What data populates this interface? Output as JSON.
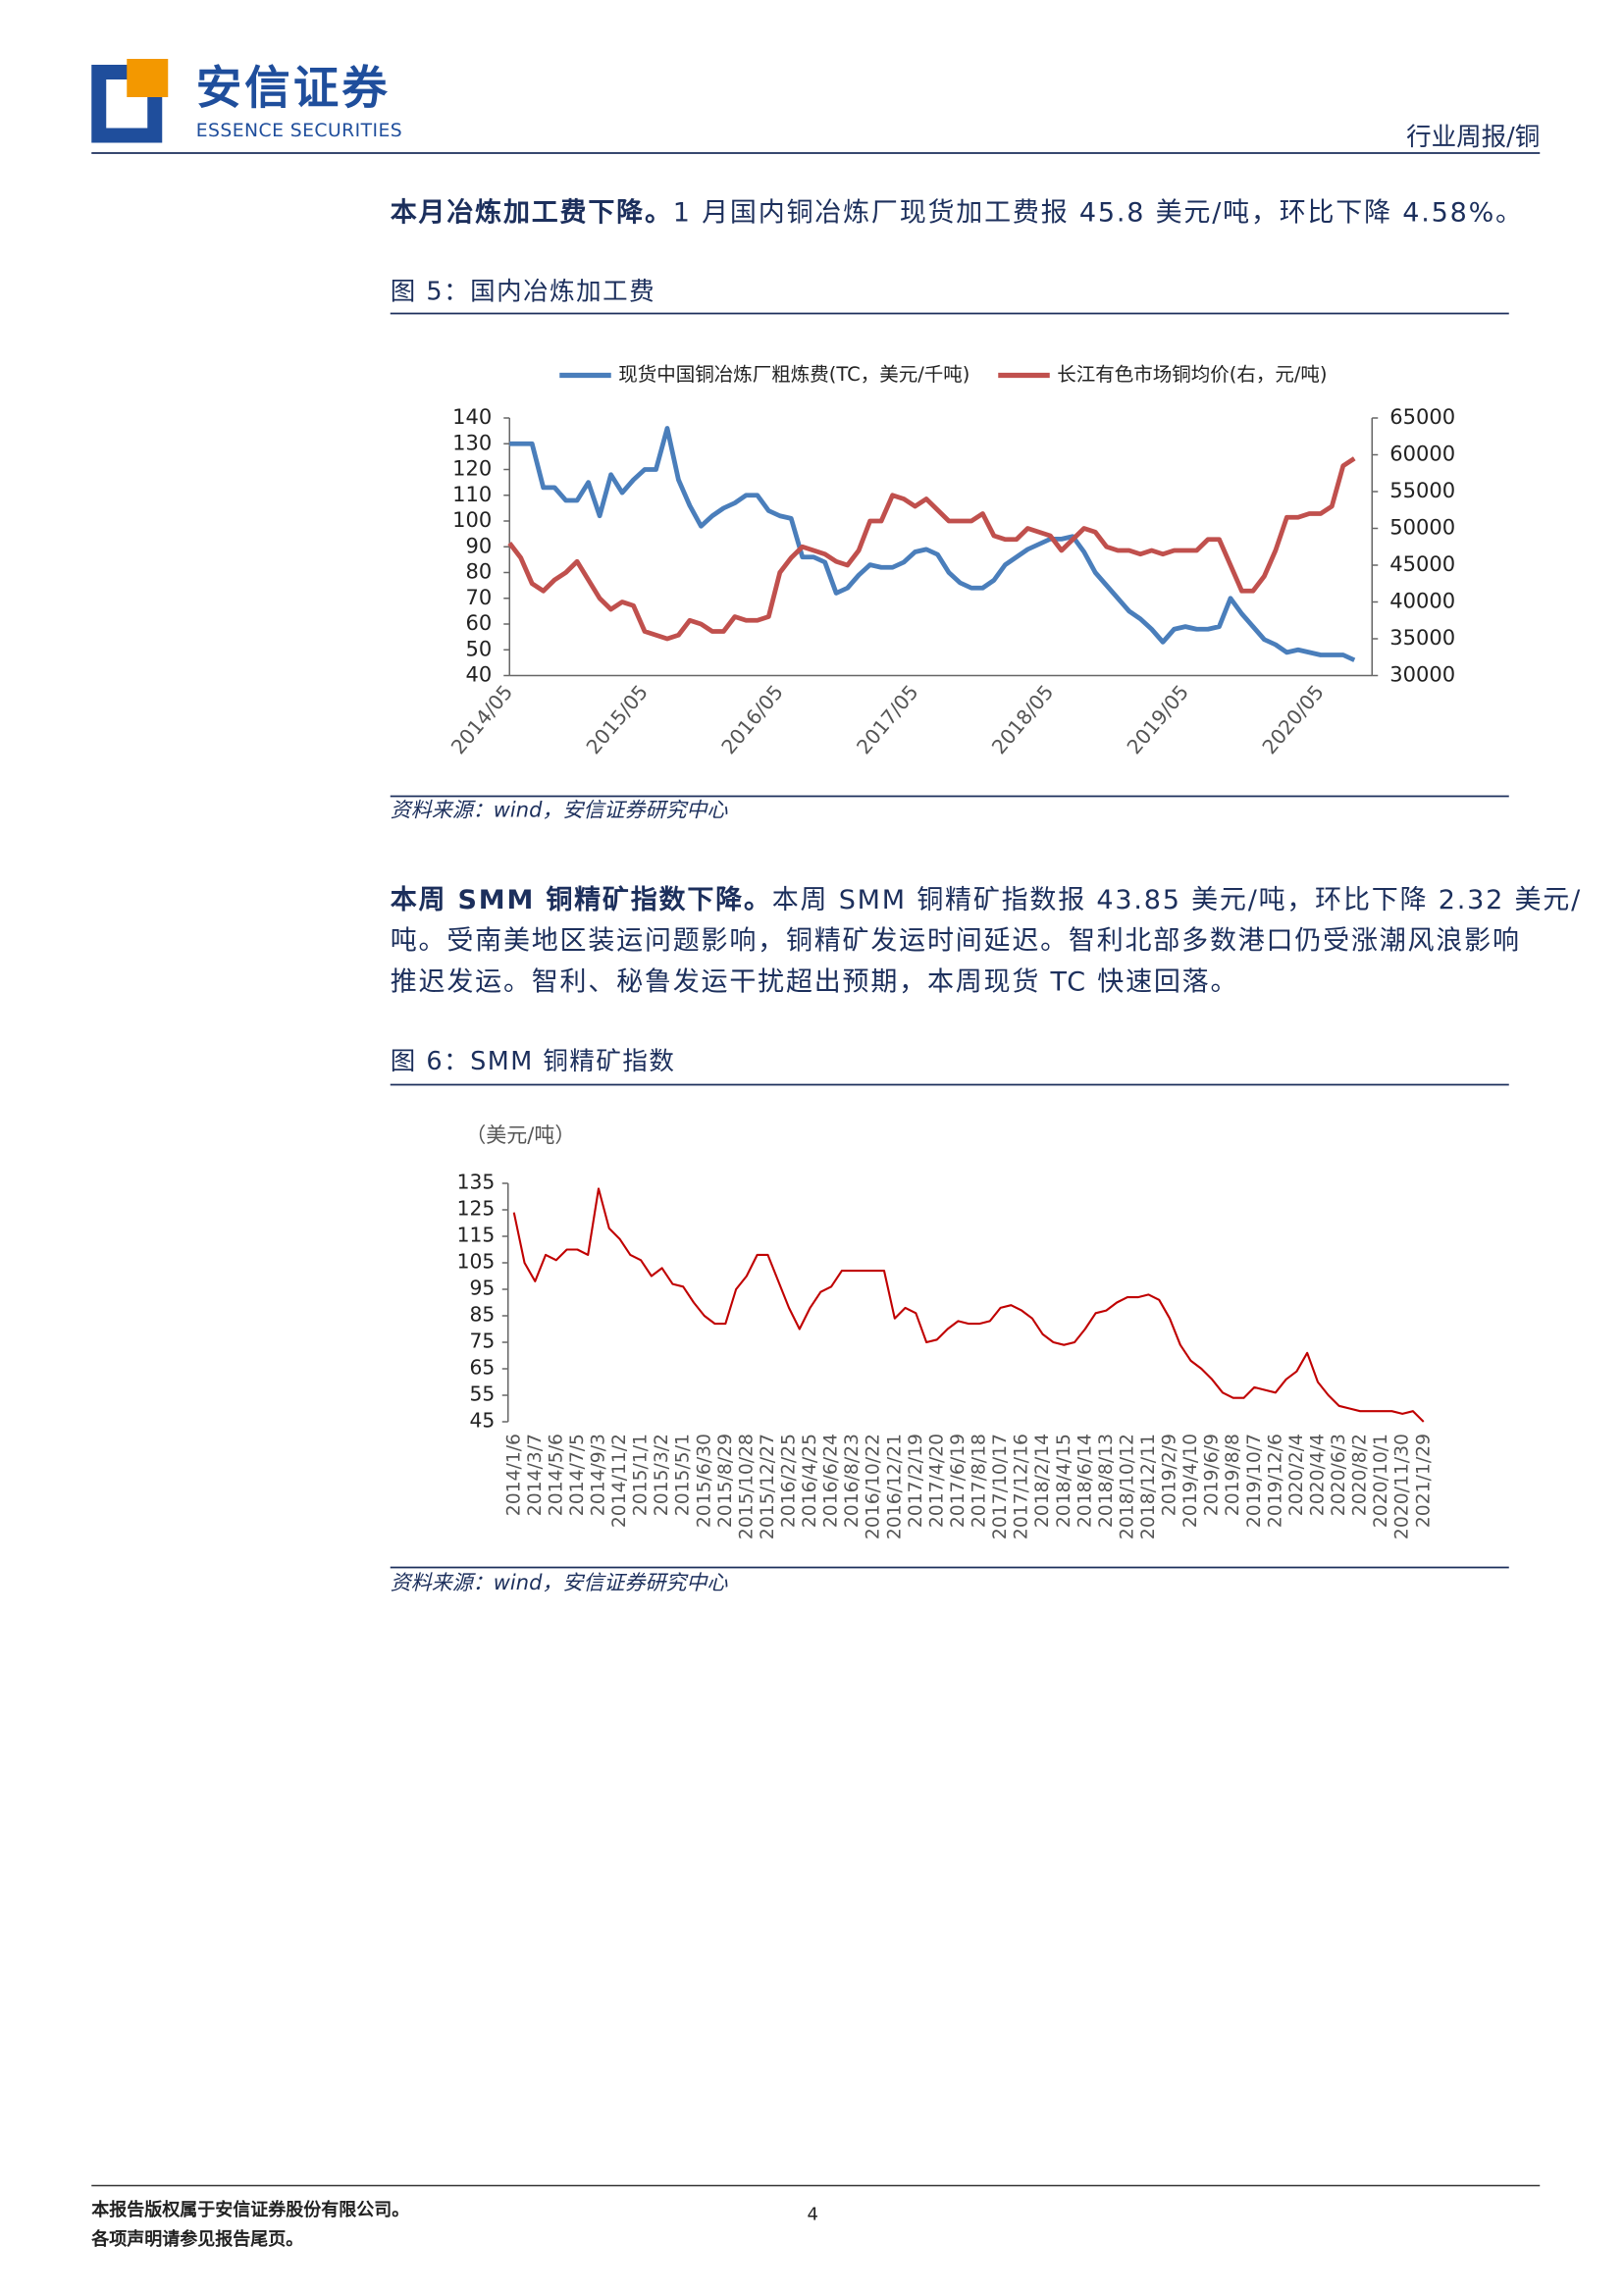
{
  "header": {
    "logo_cn": "安信证券",
    "logo_en": "ESSENCE SECURITIES",
    "section": "行业周报/铜"
  },
  "paragraphs": [
    {
      "lead": "本月冶炼加工费下降。",
      "lines": [
        "1 月国内铜冶炼厂现货加工费报 45.8 美元/吨，环比下降 4.58%。"
      ]
    },
    {
      "lead": "本周 SMM 铜精矿指数下降。",
      "lines": [
        "本周 SMM 铜精矿指数报 43.85 美元/吨，环比下降 2.32 美元/",
        "吨。受南美地区装运问题影响，铜精矿发运时间延迟。智利北部多数港口仍受涨潮风浪影响",
        "推迟发运。智利、秘鲁发运干扰超出预期，本周现货 TC 快速回落。"
      ]
    }
  ],
  "figures": [
    {
      "title": "图 5：国内冶炼加工费",
      "source": "资料来源：wind，安信证券研究中心"
    },
    {
      "title": "图 6：SMM 铜精矿指数",
      "source": "资料来源：wind，安信证券研究中心"
    }
  ],
  "chart_data": [
    {
      "type": "line",
      "categories": [
        "2014/05",
        null,
        null,
        null,
        null,
        null,
        null,
        null,
        null,
        null,
        null,
        null,
        "2015/05",
        null,
        null,
        null,
        null,
        null,
        null,
        null,
        null,
        null,
        null,
        null,
        "2016/05",
        null,
        null,
        null,
        null,
        null,
        null,
        null,
        null,
        null,
        null,
        null,
        "2017/05",
        null,
        null,
        null,
        null,
        null,
        null,
        null,
        null,
        null,
        null,
        null,
        "2018/05",
        null,
        null,
        null,
        null,
        null,
        null,
        null,
        null,
        null,
        null,
        null,
        "2019/05",
        null,
        null,
        null,
        null,
        null,
        null,
        null,
        null,
        null,
        null,
        null,
        "2020/05",
        null,
        null,
        null
      ],
      "series": [
        {
          "name": "现货中国铜冶炼厂粗炼费(TC，美元/千吨)",
          "color": "#4a7ebb",
          "values": [
            130,
            130,
            130,
            113,
            113,
            108,
            108,
            115,
            102,
            118,
            111,
            116,
            120,
            120,
            136,
            116,
            106,
            98,
            102,
            105,
            107,
            110,
            110,
            104,
            102,
            101,
            86,
            86,
            84,
            72,
            74,
            79,
            83,
            82,
            82,
            84,
            88,
            89,
            87,
            80,
            76,
            74,
            74,
            77,
            83,
            86,
            89,
            91,
            93,
            93,
            94,
            88,
            80,
            75,
            70,
            65,
            62,
            58,
            53,
            58,
            59,
            58,
            58,
            59,
            70,
            64,
            59,
            54,
            52,
            49,
            50,
            49,
            48,
            48,
            48,
            46
          ]
        },
        {
          "name": "长江有色市场铜均价(右，元/吨)",
          "color": "#c0504d",
          "axis": "y2",
          "values": [
            48000,
            46000,
            42500,
            41500,
            43000,
            44000,
            45500,
            43000,
            40500,
            39000,
            40000,
            39500,
            36000,
            35500,
            35000,
            35500,
            37500,
            37000,
            36000,
            36000,
            38000,
            37500,
            37500,
            38000,
            44000,
            46000,
            47500,
            47000,
            46500,
            45500,
            45000,
            47000,
            51000,
            51000,
            54500,
            54000,
            53000,
            54000,
            52500,
            51000,
            51000,
            51000,
            52000,
            49000,
            48500,
            48500,
            50000,
            49500,
            49000,
            47000,
            48500,
            50000,
            49500,
            47500,
            47000,
            47000,
            46500,
            47000,
            46500,
            47000,
            47000,
            47000,
            48500,
            48500,
            45000,
            41500,
            41500,
            43500,
            47000,
            51500,
            51500,
            52000,
            52000,
            53000,
            58500,
            59500
          ]
        }
      ],
      "ylim": [
        40,
        140
      ],
      "yticks": [
        40,
        50,
        60,
        70,
        80,
        90,
        100,
        110,
        120,
        130,
        140
      ],
      "y2lim": [
        30000,
        65000
      ],
      "y2ticks": [
        30000,
        35000,
        40000,
        45000,
        50000,
        55000,
        60000,
        65000
      ],
      "grid": false,
      "legend": "top"
    },
    {
      "type": "line",
      "ylabel": "（美元/吨）",
      "categories": [
        "2014/1/6",
        null,
        "2014/3/7",
        null,
        "2014/5/6",
        null,
        "2014/7/5",
        null,
        "2014/9/3",
        null,
        "2014/11/2",
        null,
        "2015/1/1",
        null,
        "2015/3/2",
        null,
        "2015/5/1",
        null,
        "2015/6/30",
        null,
        "2015/8/29",
        null,
        "2015/10/28",
        null,
        "2015/12/27",
        null,
        "2016/2/25",
        null,
        "2016/4/25",
        null,
        "2016/6/24",
        null,
        "2016/8/23",
        null,
        "2016/10/22",
        null,
        "2016/12/21",
        null,
        "2017/2/19",
        null,
        "2017/4/20",
        null,
        "2017/6/19",
        null,
        "2017/8/18",
        null,
        "2017/10/17",
        null,
        "2017/12/16",
        null,
        "2018/2/14",
        null,
        "2018/4/15",
        null,
        "2018/6/14",
        null,
        "2018/8/13",
        null,
        "2018/10/12",
        null,
        "2018/12/11",
        null,
        "2019/2/9",
        null,
        "2019/4/10",
        null,
        "2019/6/9",
        null,
        "2019/8/8",
        null,
        "2019/10/7",
        null,
        "2019/12/6",
        null,
        "2020/2/4",
        null,
        "2020/4/4",
        null,
        "2020/6/3",
        null,
        "2020/8/2",
        null,
        "2020/10/1",
        null,
        "2020/11/30",
        null,
        "2021/1/29"
      ],
      "values": [
        124,
        105,
        98,
        108,
        106,
        110,
        110,
        108,
        133,
        118,
        114,
        108,
        106,
        100,
        103,
        97,
        96,
        90,
        85,
        82,
        82,
        95,
        100,
        108,
        108,
        98,
        88,
        80,
        88,
        94,
        96,
        102,
        102,
        102,
        102,
        102,
        84,
        88,
        86,
        75,
        76,
        80,
        83,
        82,
        82,
        83,
        88,
        89,
        87,
        84,
        78,
        75,
        74,
        75,
        80,
        86,
        87,
        90,
        92,
        92,
        93,
        91,
        84,
        74,
        68,
        65,
        61,
        56,
        54,
        54,
        58,
        57,
        56,
        61,
        64,
        71,
        60,
        55,
        51,
        50,
        49,
        49,
        49,
        49,
        48,
        49,
        45
      ],
      "color": "#c00000",
      "ylim": [
        45,
        135
      ],
      "yticks": [
        45,
        55,
        65,
        75,
        85,
        95,
        105,
        115,
        125,
        135
      ],
      "grid": false
    }
  ],
  "footer": {
    "lines": [
      "本报告版权属于安信证券股份有限公司。",
      "各项声明请参见报告尾页。"
    ],
    "page": 4
  }
}
